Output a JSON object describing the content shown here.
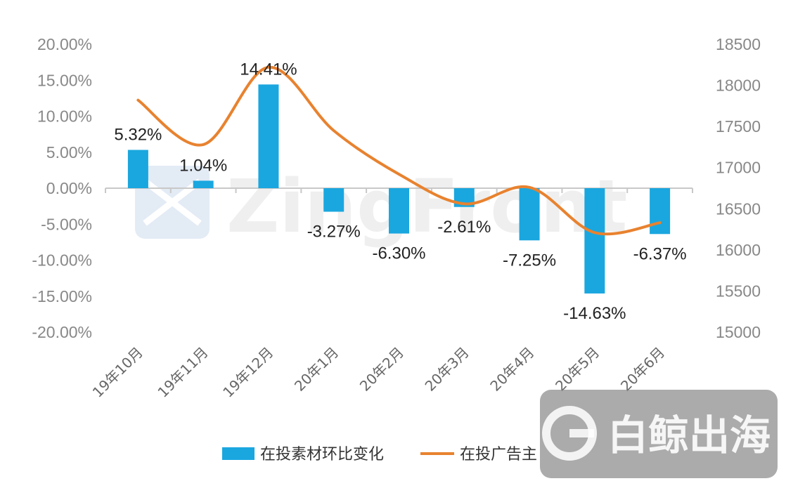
{
  "chart_data": {
    "type": "bar",
    "categories": [
      "19年10月",
      "19年11月",
      "19年12月",
      "20年1月",
      "20年2月",
      "20年3月",
      "20年4月",
      "20年5月",
      "20年6月"
    ],
    "series": [
      {
        "name": "在投素材环比变化",
        "type": "bar",
        "axis": "left",
        "color": "#1aa7df",
        "values": [
          5.32,
          1.04,
          14.41,
          -3.27,
          -6.3,
          -2.61,
          -7.25,
          -14.63,
          -6.37
        ],
        "labels": [
          "5.32%",
          "1.04%",
          "14.41%",
          "-3.27%",
          "-6.30%",
          "-2.61%",
          "-7.25%",
          "-14.63%",
          "-6.37%"
        ]
      },
      {
        "name": "在投广告主",
        "type": "line",
        "axis": "right",
        "color": "#e8822f",
        "values": [
          17820,
          17280,
          18220,
          17450,
          16920,
          16560,
          16760,
          16210,
          16330
        ]
      }
    ],
    "y_left": {
      "ylim": [
        -20,
        20
      ],
      "ticks": [
        20,
        15,
        10,
        5,
        0,
        -5,
        -10,
        -15,
        -20
      ],
      "tick_labels": [
        "20.00%",
        "15.00%",
        "10.00%",
        "5.00%",
        "0.00%",
        "-5.00%",
        "-10.00%",
        "-15.00%",
        "-20.00%"
      ]
    },
    "y_right": {
      "ylim": [
        15000,
        18500
      ],
      "ticks": [
        18500,
        18000,
        17500,
        17000,
        16500,
        16000,
        15500,
        15000
      ],
      "tick_labels": [
        "18500",
        "18000",
        "17500",
        "17000",
        "16500",
        "16000",
        "15500",
        "15000"
      ]
    },
    "legend": {
      "position": "bottom",
      "items": [
        "在投素材环比变化",
        "在投广告主"
      ]
    },
    "grid": false,
    "title": "",
    "xlabel": "",
    "ylabel": ""
  },
  "watermarks": {
    "center_text": "ZingFront",
    "corner_text": "白鲸出海"
  }
}
